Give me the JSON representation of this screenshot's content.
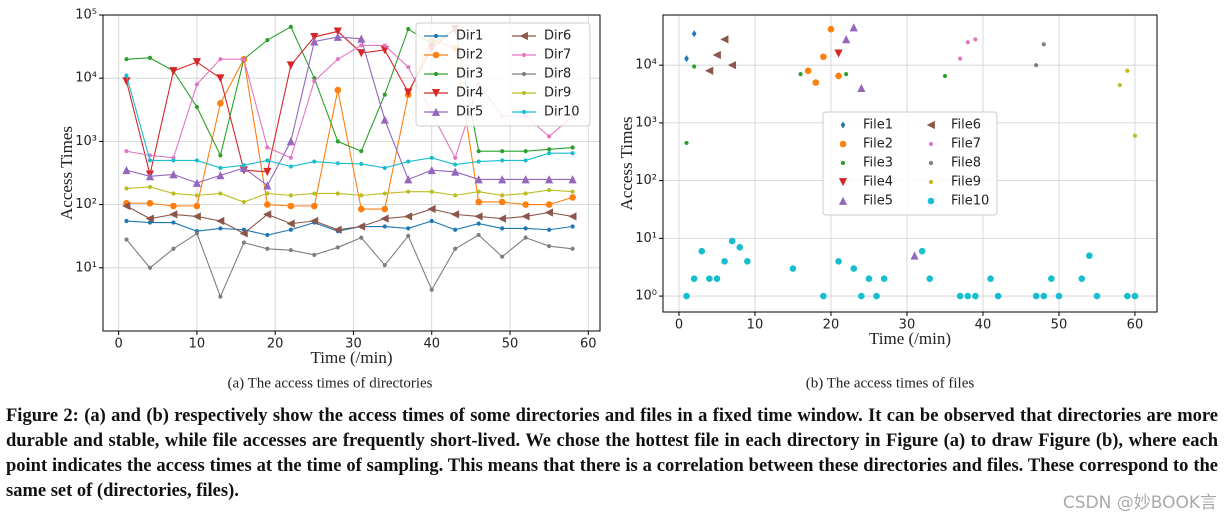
{
  "chart_data": [
    {
      "type": "line",
      "xlabel": "Time (/min)",
      "ylabel": "Access Times",
      "ylog": true,
      "grid": true,
      "legend": "upper right",
      "xlim": [
        -2,
        61.5
      ],
      "ylim": [
        1,
        100000
      ],
      "xticks": [
        0,
        10,
        20,
        30,
        40,
        50,
        60
      ],
      "yticks": [
        {
          "value": 10,
          "label": "10¹"
        },
        {
          "value": 100,
          "label": "10²"
        },
        {
          "value": 1000,
          "label": "10³"
        },
        {
          "value": 10000,
          "label": "10⁴"
        },
        {
          "value": 100000,
          "label": "10⁵"
        }
      ],
      "x": [
        1,
        4,
        7,
        10,
        13,
        16,
        19,
        22,
        25,
        28,
        31,
        34,
        37,
        40,
        43,
        46,
        49,
        52,
        55,
        58
      ],
      "series": [
        {
          "name": "Dir1",
          "color": "#1f77b4",
          "marker": ".",
          "values": [
            55,
            52,
            52,
            38,
            42,
            40,
            33,
            40,
            52,
            38,
            45,
            45,
            42,
            55,
            40,
            50,
            42,
            42,
            40,
            45
          ]
        },
        {
          "name": "Dir2",
          "color": "#ff7f0e",
          "marker": "o",
          "values": [
            105,
            105,
            95,
            95,
            4000,
            20000,
            100,
            95,
            95,
            6500,
            85,
            85,
            5500,
            40000,
            30000,
            110,
            110,
            100,
            100,
            130
          ]
        },
        {
          "name": "Dir3",
          "color": "#2ca02c",
          "marker": ".",
          "values": [
            20000,
            21000,
            13000,
            3500,
            600,
            20000,
            40000,
            65000,
            10000,
            1000,
            700,
            5500,
            60000,
            35000,
            60000,
            700,
            700,
            700,
            750,
            800
          ]
        },
        {
          "name": "Dir4",
          "color": "#d62728",
          "marker": "v",
          "values": [
            9000,
            300,
            13000,
            18000,
            10000,
            350,
            330,
            16000,
            45000,
            55000,
            25000,
            28000,
            6000,
            30000,
            60000,
            null,
            null,
            null,
            null,
            null
          ]
        },
        {
          "name": "Dir5",
          "color": "#9467bd",
          "marker": "^",
          "values": [
            350,
            280,
            300,
            220,
            290,
            380,
            200,
            1000,
            38000,
            45000,
            42000,
            2200,
            250,
            350,
            330,
            250,
            250,
            250,
            250,
            250
          ]
        },
        {
          "name": "Dir6",
          "color": "#8c564b",
          "marker": "<",
          "values": [
            95,
            60,
            70,
            65,
            55,
            35,
            70,
            50,
            55,
            40,
            45,
            60,
            65,
            85,
            70,
            65,
            60,
            65,
            75,
            65
          ]
        },
        {
          "name": "Dir7",
          "color": "#e377c2",
          "marker": ".",
          "values": [
            700,
            600,
            550,
            8000,
            20000,
            20000,
            800,
            550,
            9000,
            20000,
            33000,
            33000,
            15000,
            2800,
            550,
            8000,
            2500,
            2500,
            1200,
            2500
          ]
        },
        {
          "name": "Dir8",
          "color": "#7f7f7f",
          "marker": ".",
          "values": [
            28,
            10,
            20,
            35,
            3.5,
            25,
            20,
            19,
            16,
            21,
            30,
            11,
            32,
            4.5,
            20,
            33,
            15,
            30,
            22,
            20
          ]
        },
        {
          "name": "Dir9",
          "color": "#bcbd22",
          "marker": ".",
          "values": [
            180,
            190,
            150,
            140,
            150,
            110,
            150,
            140,
            150,
            150,
            140,
            150,
            160,
            160,
            140,
            160,
            140,
            150,
            170,
            160
          ]
        },
        {
          "name": "Dir10",
          "color": "#17becf",
          "marker": ".",
          "values": [
            11000,
            500,
            500,
            500,
            380,
            420,
            500,
            400,
            480,
            450,
            440,
            380,
            480,
            550,
            430,
            480,
            500,
            500,
            650,
            650
          ]
        }
      ]
    },
    {
      "type": "scatter",
      "xlabel": "Time (/min)",
      "ylabel": "Access Times",
      "ylog": true,
      "grid": true,
      "legend": "center",
      "xlim": [
        -2.1,
        62.9
      ],
      "ylim": [
        0.53,
        74000
      ],
      "xticks": [
        0,
        10,
        20,
        30,
        40,
        50,
        60
      ],
      "yticks": [
        {
          "value": 1,
          "label": "10⁰"
        },
        {
          "value": 10,
          "label": "10¹"
        },
        {
          "value": 100,
          "label": "10²"
        },
        {
          "value": 1000,
          "label": "10³"
        },
        {
          "value": 10000,
          "label": "10⁴"
        }
      ],
      "series": [
        {
          "name": "File1",
          "color": "#1f77b4",
          "marker": "d",
          "x": [
            1,
            2
          ],
          "values": [
            13000,
            35000
          ]
        },
        {
          "name": "File2",
          "color": "#ff7f0e",
          "marker": "o",
          "x": [
            17,
            18,
            19,
            20,
            21
          ],
          "values": [
            8000,
            5000,
            14000,
            42000,
            6500
          ]
        },
        {
          "name": "File3",
          "color": "#2ca02c",
          "marker": ".",
          "x": [
            1,
            2,
            16,
            22,
            35
          ],
          "values": [
            450,
            9500,
            7000,
            7000,
            6500
          ]
        },
        {
          "name": "File4",
          "color": "#d62728",
          "marker": "v",
          "x": [
            21
          ],
          "values": [
            16000
          ]
        },
        {
          "name": "File5",
          "color": "#9467bd",
          "marker": "^",
          "x": [
            22,
            23,
            24,
            31
          ],
          "values": [
            28000,
            45000,
            4000,
            5
          ]
        },
        {
          "name": "File6",
          "color": "#8c564b",
          "marker": "<",
          "x": [
            4,
            5,
            6,
            7
          ],
          "values": [
            8000,
            15000,
            28000,
            10000
          ]
        },
        {
          "name": "File7",
          "color": "#e377c2",
          "marker": ".",
          "x": [
            37,
            38,
            39
          ],
          "values": [
            13000,
            25000,
            28000
          ]
        },
        {
          "name": "File8",
          "color": "#7f7f7f",
          "marker": ".",
          "x": [
            47,
            48
          ],
          "values": [
            10000,
            23000
          ]
        },
        {
          "name": "File9",
          "color": "#bcbd22",
          "marker": ".",
          "x": [
            58,
            59,
            60
          ],
          "values": [
            4500,
            8000,
            600
          ]
        },
        {
          "name": "File10",
          "color": "#17becf",
          "marker": "o",
          "x": [
            1,
            2,
            3,
            4,
            5,
            6,
            7,
            8,
            9,
            15,
            19,
            21,
            23,
            24,
            25,
            26,
            27,
            32,
            33,
            37,
            38,
            39,
            41,
            42,
            47,
            48,
            49,
            50,
            53,
            54,
            55,
            59,
            60
          ],
          "values": [
            1,
            2,
            6,
            2,
            2,
            4,
            9,
            7,
            4,
            3,
            1,
            4,
            3,
            1,
            2,
            1,
            2,
            6,
            2,
            1,
            1,
            1,
            2,
            1,
            1,
            1,
            2,
            1,
            2,
            5,
            1,
            1,
            1
          ]
        }
      ]
    }
  ],
  "subcaptions": [
    "(a) The access times of directories",
    "(b) The access times of files"
  ],
  "caption": "Figure 2: (a) and (b) respectively show the access times of some directories and files in a fixed time window. It can be observed that directories are more durable and stable, while file accesses are frequently short-lived. We chose the hottest file in each directory in Figure (a) to draw Figure (b), where each point indicates the access times at the time of sampling. This means that there is a correlation between these directories and files. These correspond to the same set of (directories, files).",
  "watermark": "CSDN @妙BOOK言"
}
